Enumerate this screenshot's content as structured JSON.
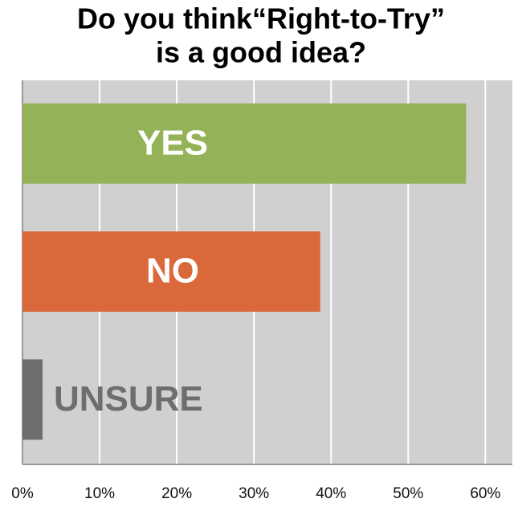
{
  "chart_data": {
    "type": "barh",
    "title": [
      "Do you think“Right-to-Try”",
      "is a good idea?"
    ],
    "categories": [
      "YES",
      "NO",
      "UNSURE"
    ],
    "values": [
      57.5,
      38.6,
      2.6
    ],
    "colors": [
      "#94b257",
      "#d9693a",
      "#6e6e6e"
    ],
    "xlim": [
      0,
      63.5
    ],
    "xticks": [
      {
        "value": 0,
        "label": "0%"
      },
      {
        "value": 10,
        "label": "10%"
      },
      {
        "value": 20,
        "label": "20%"
      },
      {
        "value": 30,
        "label": "30%"
      },
      {
        "value": 40,
        "label": "40%"
      },
      {
        "value": 50,
        "label": "50%"
      },
      {
        "value": 60,
        "label": "60%"
      }
    ],
    "grid": true
  }
}
